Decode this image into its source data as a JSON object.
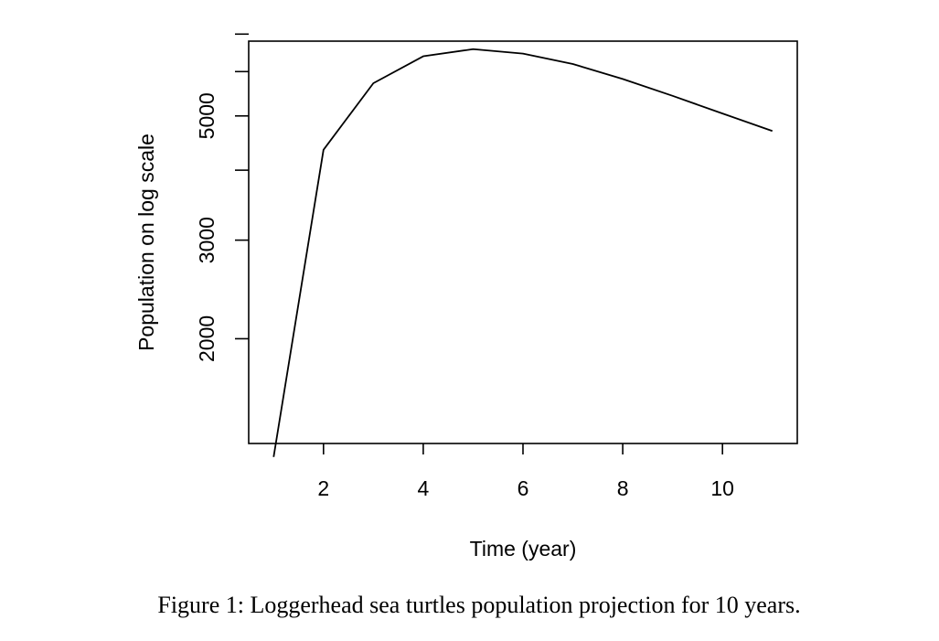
{
  "chart_data": {
    "type": "line",
    "title": "",
    "xlabel": "Time (year)",
    "ylabel": "Population on log scale",
    "y_scale": "log",
    "x": [
      1,
      2,
      3,
      4,
      5,
      6,
      7,
      8,
      9,
      10,
      11
    ],
    "series": [
      {
        "name": "Loggerhead sea turtles population",
        "values": [
          1230,
          4350,
          5720,
          6390,
          6580,
          6460,
          6190,
          5820,
          5430,
          5050,
          4700
        ]
      }
    ],
    "xlim": [
      0.5,
      11.5
    ],
    "ylim": [
      1300,
      6800
    ],
    "x_ticks": [
      2,
      4,
      6,
      8,
      10
    ],
    "y_ticks": [
      2000,
      3000,
      4000,
      5000,
      6000,
      7000
    ],
    "y_tick_labels": [
      "2000",
      "3000",
      "",
      "5000",
      "",
      ""
    ],
    "grid": false,
    "colors": {
      "line": "#000000",
      "axis": "#000000"
    }
  },
  "caption": {
    "text": "Figure 1: Loggerhead sea turtles population projection for 10 years."
  }
}
